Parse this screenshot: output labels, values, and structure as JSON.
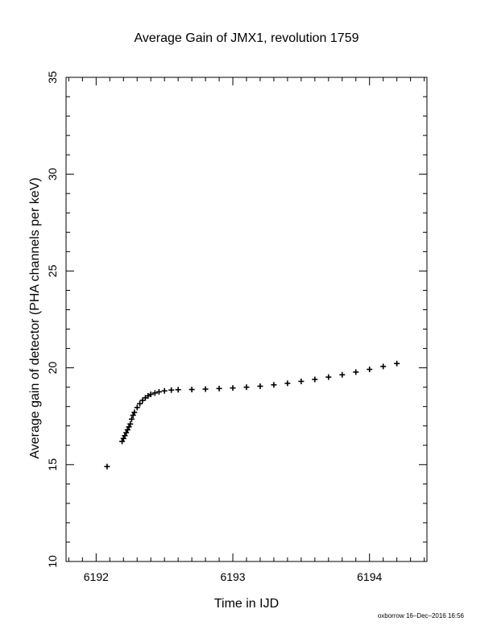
{
  "chart_data": {
    "type": "scatter",
    "title": "Average Gain of JMX1, revolution 1759",
    "xlabel": "Time in IJD",
    "ylabel": "Average gain of detector (PHA channels per keV)",
    "xlim": [
      6191.78,
      6194.42
    ],
    "ylim": [
      10,
      35
    ],
    "x_ticks": [
      6192,
      6193,
      6194
    ],
    "y_ticks": [
      10,
      15,
      20,
      25,
      30,
      35
    ],
    "x_minor_step": 0.1,
    "y_minor_step": 1,
    "marker": "plus",
    "marker_color": "#000000",
    "points": [
      [
        6192.08,
        14.9
      ],
      [
        6192.19,
        16.2
      ],
      [
        6192.2,
        16.35
      ],
      [
        6192.21,
        16.5
      ],
      [
        6192.22,
        16.65
      ],
      [
        6192.23,
        16.8
      ],
      [
        6192.24,
        16.95
      ],
      [
        6192.25,
        17.1
      ],
      [
        6192.26,
        17.35
      ],
      [
        6192.27,
        17.55
      ],
      [
        6192.28,
        17.7
      ],
      [
        6192.3,
        17.95
      ],
      [
        6192.32,
        18.15
      ],
      [
        6192.34,
        18.32
      ],
      [
        6192.36,
        18.45
      ],
      [
        6192.38,
        18.55
      ],
      [
        6192.4,
        18.63
      ],
      [
        6192.43,
        18.7
      ],
      [
        6192.46,
        18.76
      ],
      [
        6192.5,
        18.81
      ],
      [
        6192.55,
        18.85
      ],
      [
        6192.6,
        18.87
      ],
      [
        6192.7,
        18.88
      ],
      [
        6192.8,
        18.9
      ],
      [
        6192.9,
        18.93
      ],
      [
        6193.0,
        18.96
      ],
      [
        6193.1,
        19.0
      ],
      [
        6193.2,
        19.05
      ],
      [
        6193.3,
        19.12
      ],
      [
        6193.4,
        19.2
      ],
      [
        6193.5,
        19.3
      ],
      [
        6193.6,
        19.4
      ],
      [
        6193.7,
        19.52
      ],
      [
        6193.8,
        19.64
      ],
      [
        6193.9,
        19.78
      ],
      [
        6194.0,
        19.92
      ],
      [
        6194.1,
        20.07
      ],
      [
        6194.2,
        20.22
      ]
    ]
  },
  "footer": "oxborrow 16–Dec–2016 16:56"
}
